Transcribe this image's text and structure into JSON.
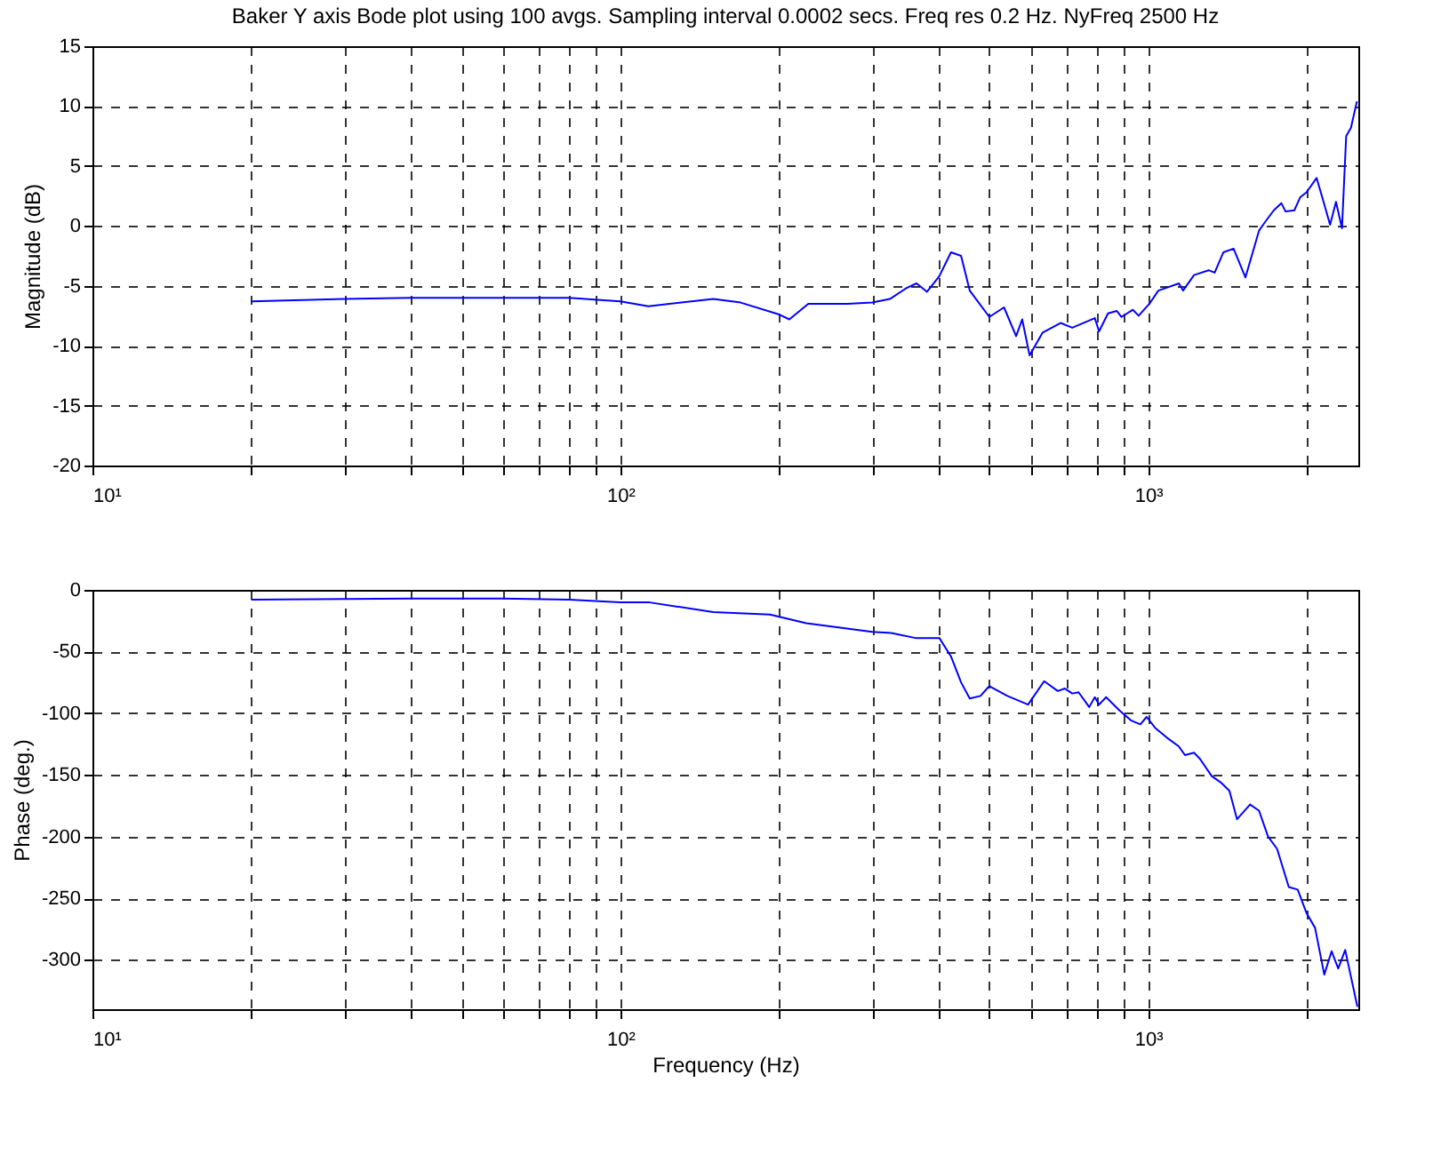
{
  "chart_data": [
    {
      "type": "line",
      "title": "Baker Y axis Bode plot using  100 avgs. Sampling interval  0.0002 secs.  Freq res 0.2 Hz.  NyFreq 2500 Hz",
      "ylabel": "Magnitude (dB)",
      "log": "x",
      "grid": true,
      "xlim": [
        10,
        2500
      ],
      "ylim": [
        -20,
        15
      ],
      "yticks": [
        -20,
        -15,
        -10,
        -5,
        0,
        5,
        10,
        15
      ],
      "xticks": [
        {
          "value": 10,
          "label": "10¹"
        },
        {
          "value": 20,
          "label": null
        },
        {
          "value": 30,
          "label": null
        },
        {
          "value": 40,
          "label": null
        },
        {
          "value": 50,
          "label": null
        },
        {
          "value": 60,
          "label": null
        },
        {
          "value": 70,
          "label": null
        },
        {
          "value": 80,
          "label": null
        },
        {
          "value": 90,
          "label": null
        },
        {
          "value": 100,
          "label": "10²"
        },
        {
          "value": 200,
          "label": null
        },
        {
          "value": 300,
          "label": null
        },
        {
          "value": 400,
          "label": null
        },
        {
          "value": 500,
          "label": null
        },
        {
          "value": 600,
          "label": null
        },
        {
          "value": 700,
          "label": null
        },
        {
          "value": 800,
          "label": null
        },
        {
          "value": 900,
          "label": null
        },
        {
          "value": 1000,
          "label": "10³"
        },
        {
          "value": 2000,
          "label": null
        }
      ],
      "series": [
        {
          "color": "#0000ff",
          "x": [
            20,
            30,
            40,
            60,
            80,
            100,
            113,
            150,
            169,
            200,
            209,
            227,
            269,
            300,
            324,
            348,
            364,
            381,
            402,
            423,
            442,
            459,
            500,
            533,
            562,
            577,
            596,
            631,
            682,
            718,
            792,
            807,
            839,
            872,
            890,
            935,
            959,
            1005,
            1045,
            1143,
            1164,
            1221,
            1301,
            1336,
            1388,
            1451,
            1528,
            1621,
            1663,
            1729,
            1787,
            1820,
            1891,
            1941,
            1994,
            2084,
            2155,
            2210,
            2268,
            2328,
            2371,
            2421,
            2485
          ],
          "values": [
            -6.3,
            -6.1,
            -6.0,
            -6.0,
            -6.0,
            -6.3,
            -6.7,
            -6.1,
            -6.4,
            -7.4,
            -7.8,
            -6.5,
            -6.5,
            -6.4,
            -6.1,
            -5.2,
            -4.8,
            -5.5,
            -4.2,
            -2.2,
            -2.5,
            -5.4,
            -7.6,
            -6.8,
            -9.2,
            -7.8,
            -10.8,
            -8.9,
            -8.1,
            -8.5,
            -7.7,
            -8.8,
            -7.3,
            -7.1,
            -7.6,
            -7.0,
            -7.5,
            -6.5,
            -5.4,
            -4.8,
            -5.4,
            -4.1,
            -3.7,
            -3.9,
            -2.2,
            -1.9,
            -4.3,
            -0.4,
            0.3,
            1.3,
            1.9,
            1.2,
            1.3,
            2.4,
            2.8,
            4.0,
            1.8,
            0.1,
            2.0,
            -0.2,
            7.5,
            8.2,
            10.4
          ]
        }
      ]
    },
    {
      "type": "line",
      "xlabel": "Frequency (Hz)",
      "ylabel": "Phase (deg.)",
      "log": "x",
      "grid": true,
      "xlim": [
        10,
        2500
      ],
      "ylim": [
        -340,
        0
      ],
      "yticks": [
        -300,
        -250,
        -200,
        -150,
        -100,
        -50,
        0
      ],
      "xticks": [
        {
          "value": 10,
          "label": "10¹"
        },
        {
          "value": 20,
          "label": null
        },
        {
          "value": 30,
          "label": null
        },
        {
          "value": 40,
          "label": null
        },
        {
          "value": 50,
          "label": null
        },
        {
          "value": 60,
          "label": null
        },
        {
          "value": 70,
          "label": null
        },
        {
          "value": 80,
          "label": null
        },
        {
          "value": 90,
          "label": null
        },
        {
          "value": 100,
          "label": "10²"
        },
        {
          "value": 200,
          "label": null
        },
        {
          "value": 300,
          "label": null
        },
        {
          "value": 400,
          "label": null
        },
        {
          "value": 500,
          "label": null
        },
        {
          "value": 600,
          "label": null
        },
        {
          "value": 700,
          "label": null
        },
        {
          "value": 800,
          "label": null
        },
        {
          "value": 900,
          "label": null
        },
        {
          "value": 1000,
          "label": "10³"
        },
        {
          "value": 2000,
          "label": null
        }
      ],
      "series": [
        {
          "color": "#0000ff",
          "x": [
            20,
            40,
            60,
            80,
            100,
            113,
            150,
            192,
            225,
            300,
            326,
            362,
            402,
            423,
            442,
            459,
            481,
            500,
            541,
            592,
            635,
            674,
            695,
            718,
            738,
            773,
            792,
            807,
            832,
            883,
            929,
            966,
            993,
            1031,
            1086,
            1143,
            1174,
            1221,
            1253,
            1319,
            1371,
            1425,
            1473,
            1559,
            1621,
            1686,
            1754,
            1846,
            1919,
            1994,
            2070,
            2155,
            2225,
            2290,
            2361,
            2490
          ],
          "values": [
            -8,
            -7,
            -7,
            -8,
            -10,
            -10,
            -18,
            -20,
            -27,
            -34,
            -35,
            -39,
            -39,
            -54,
            -75,
            -88,
            -86,
            -78,
            -86,
            -93,
            -74,
            -82,
            -80,
            -84,
            -83,
            -95,
            -87,
            -93,
            -87,
            -98,
            -106,
            -109,
            -103,
            -112,
            -120,
            -127,
            -134,
            -132,
            -137,
            -151,
            -156,
            -163,
            -186,
            -174,
            -179,
            -200,
            -210,
            -241,
            -243,
            -262,
            -274,
            -312,
            -293,
            -307,
            -292,
            -338
          ]
        }
      ]
    }
  ]
}
